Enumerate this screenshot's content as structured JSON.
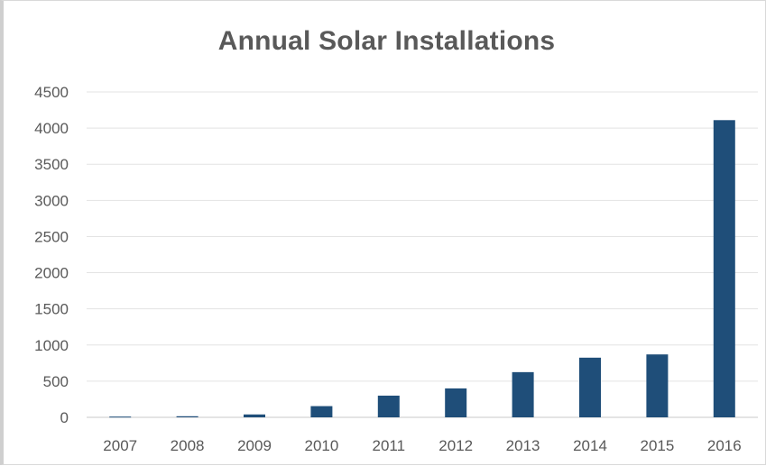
{
  "chart_data": {
    "type": "bar",
    "title": "Annual Solar Installations",
    "xlabel": "",
    "ylabel": "",
    "categories": [
      "2007",
      "2008",
      "2009",
      "2010",
      "2011",
      "2012",
      "2013",
      "2014",
      "2015",
      "2016"
    ],
    "values": [
      10,
      15,
      40,
      155,
      300,
      400,
      625,
      825,
      870,
      4110
    ],
    "ylim": [
      0,
      4500
    ],
    "yticks": [
      "0",
      "500",
      "1000",
      "1500",
      "2000",
      "2500",
      "3000",
      "3500",
      "4000",
      "4500"
    ],
    "grid": true,
    "legend": "none",
    "bar_color": "#1f4e79"
  }
}
